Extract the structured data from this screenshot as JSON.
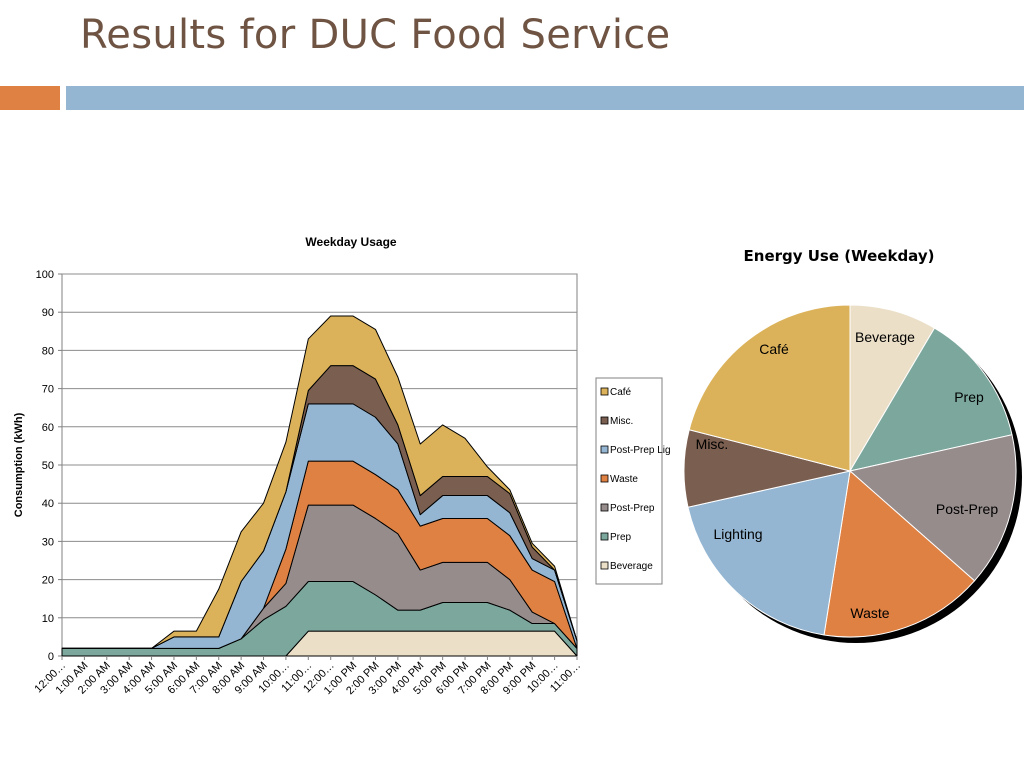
{
  "slide": {
    "title": "Results for DUC Food Service",
    "accent_color": "#df8143",
    "bar_color": "#94b6d2"
  },
  "chart_data": [
    {
      "type": "area",
      "stacked": true,
      "title": "Weekday Usage",
      "xlabel": "",
      "ylabel": "Consumption (kWh)",
      "ylim": [
        0,
        100
      ],
      "yticks": [
        0,
        10,
        20,
        30,
        40,
        50,
        60,
        70,
        80,
        90,
        100
      ],
      "grid": true,
      "legend_position": "right",
      "categories": [
        "12:00…",
        "1:00 AM",
        "2:00 AM",
        "3:00 AM",
        "4:00 AM",
        "5:00 AM",
        "6:00 AM",
        "7:00 AM",
        "8:00 AM",
        "9:00 AM",
        "10:00…",
        "11:00…",
        "12:00…",
        "1:00 PM",
        "2:00 PM",
        "3:00 PM",
        "4:00 PM",
        "5:00 PM",
        "6:00 PM",
        "7:00 PM",
        "8:00 PM",
        "9:00 PM",
        "10:00…",
        "11:00…"
      ],
      "series": [
        {
          "name": "Beverage",
          "color": "#ebdfc8",
          "values": [
            0,
            0,
            0,
            0,
            0,
            0,
            0,
            0,
            0,
            0,
            0,
            6.5,
            6.5,
            6.5,
            6.5,
            6.5,
            6.5,
            6.5,
            6.5,
            6.5,
            6.5,
            6.5,
            6.5,
            0
          ]
        },
        {
          "name": "Prep",
          "color": "#7ba79d",
          "values": [
            2,
            2,
            2,
            2,
            2,
            2,
            2,
            2,
            4.5,
            9.5,
            13,
            13,
            13,
            13,
            9.5,
            5.5,
            5.5,
            7.5,
            7.5,
            7.5,
            5.5,
            2,
            2,
            2
          ]
        },
        {
          "name": "Post-Prep",
          "color": "#968c8c",
          "values": [
            0,
            0,
            0,
            0,
            0,
            0,
            0,
            0,
            0,
            3,
            6,
            20,
            20,
            20,
            20,
            20,
            10.5,
            10.5,
            10.5,
            10.5,
            8,
            3,
            0,
            0
          ]
        },
        {
          "name": "Waste",
          "color": "#df8143",
          "values": [
            0,
            0,
            0,
            0,
            0,
            0,
            0,
            0,
            0,
            0,
            9,
            11.5,
            11.5,
            11.5,
            11.5,
            11.5,
            11.5,
            11.5,
            11.5,
            11.5,
            11.5,
            11,
            11,
            0
          ]
        },
        {
          "name": "Post-Prep Lighting",
          "color": "#94b6d2",
          "values": [
            0,
            0,
            0,
            0,
            0,
            3,
            3,
            3,
            15,
            15,
            15,
            15,
            15,
            15,
            15,
            12,
            3,
            6,
            6,
            6,
            6,
            3,
            3,
            2
          ]
        },
        {
          "name": "Misc.",
          "color": "#7a5e4f",
          "values": [
            0,
            0,
            0,
            0,
            0,
            0,
            0,
            0,
            0,
            0,
            0,
            3.5,
            10,
            10,
            10,
            5,
            5,
            5,
            5,
            5,
            5,
            3,
            0,
            0
          ]
        },
        {
          "name": "Café",
          "color": "#dbb25a",
          "values": [
            0,
            0,
            0,
            0,
            0,
            1.5,
            1.5,
            12.5,
            13,
            12.5,
            13,
            13.5,
            13,
            13,
            13,
            12.5,
            13.5,
            13.5,
            10,
            2.5,
            1,
            1,
            1,
            0
          ]
        }
      ]
    },
    {
      "type": "pie",
      "title": "Energy Use (Weekday)",
      "slices": [
        {
          "label": "Beverage",
          "value": 8.5,
          "color": "#ebdfc8"
        },
        {
          "label": "Prep",
          "value": 13,
          "color": "#7ba79d"
        },
        {
          "label": "Post-Prep",
          "value": 15,
          "color": "#968c8c"
        },
        {
          "label": "Waste",
          "value": 16,
          "color": "#df8143"
        },
        {
          "label": "Lighting",
          "value": 19,
          "color": "#94b6d2"
        },
        {
          "label": "Misc.",
          "value": 7.5,
          "color": "#7a5e4f"
        },
        {
          "label": "Café",
          "value": 21,
          "color": "#dbb25a"
        }
      ]
    }
  ]
}
